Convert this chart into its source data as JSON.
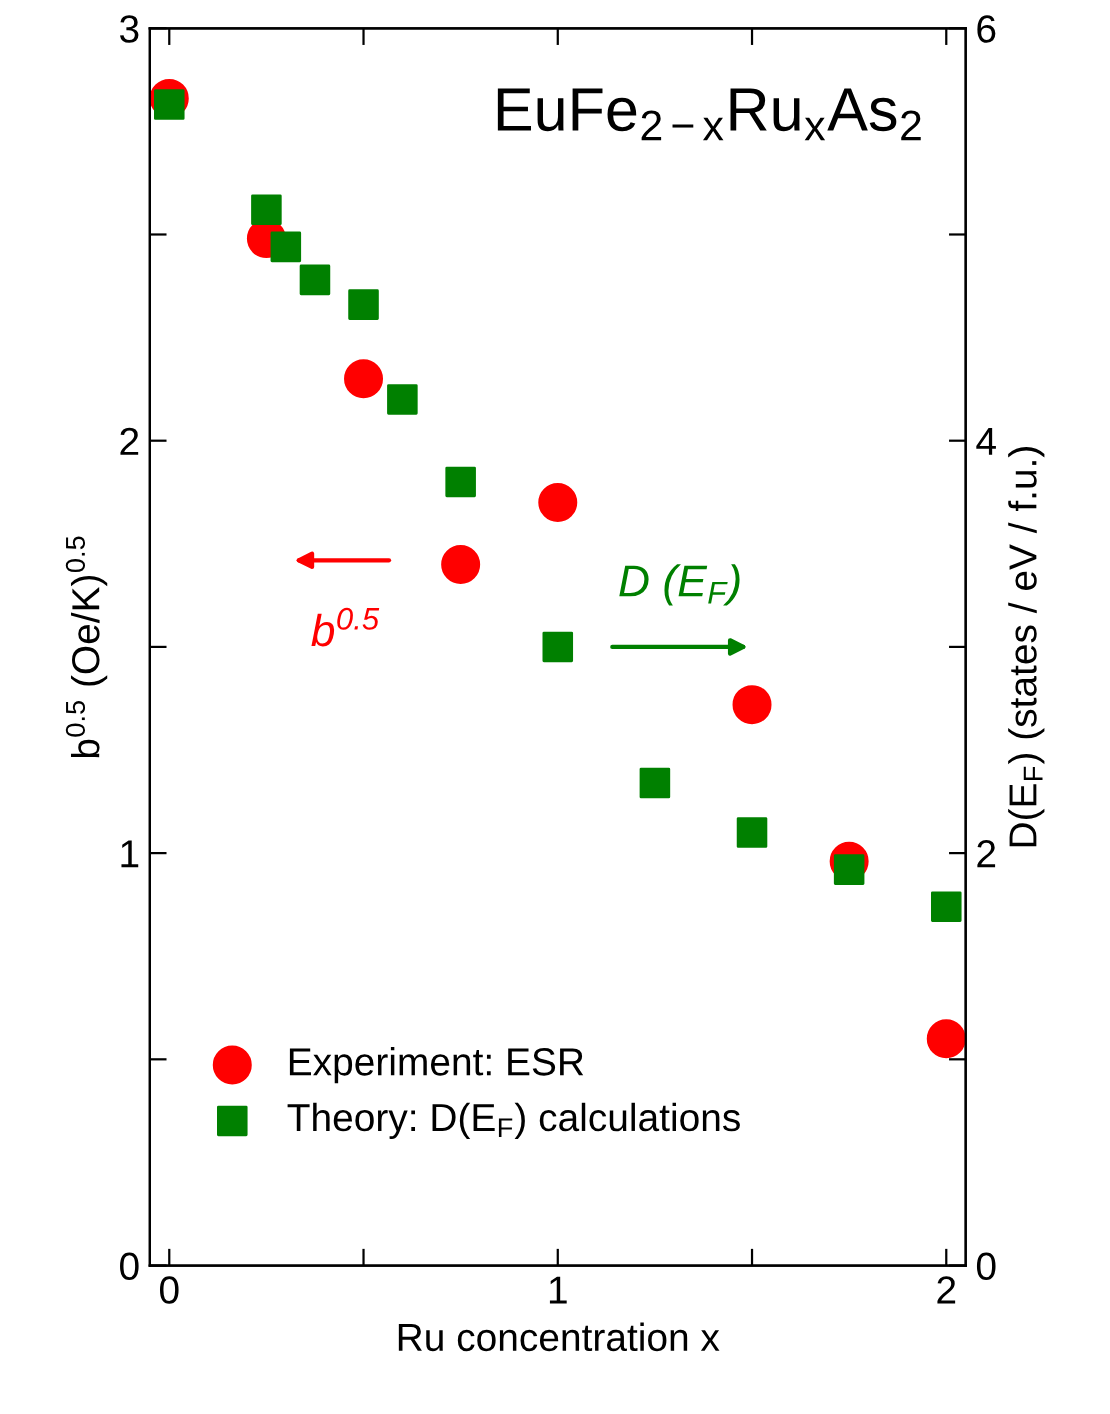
{
  "chart_data": {
    "type": "scatter",
    "title": "EuFe$_{2−x}$Ru$_{x}$As$_{2}$",
    "xlabel": "Ru concentration x",
    "ylabel": "b$^{0.5}$ (Oe/K)$^{0.5}$",
    "y2label": "D(E$_{F}$) (states / eV / f.u.)",
    "xlim": [
      -0.05,
      2.05
    ],
    "xticks": [
      0,
      {
        "value": 0.5,
        "label": null
      },
      1,
      {
        "value": 1.5,
        "label": null
      },
      2
    ],
    "ylim": [
      0,
      3
    ],
    "yticks": [
      0,
      {
        "value": 0.5,
        "label": null
      },
      1,
      {
        "value": 1.5,
        "label": null
      },
      2,
      {
        "value": 2.5,
        "label": null
      },
      3
    ],
    "y2lim": [
      0,
      6
    ],
    "y2ticks": [
      0,
      {
        "value": 1,
        "label": null
      },
      2,
      {
        "value": 3,
        "label": null
      },
      4,
      {
        "value": 5,
        "label": null
      },
      6
    ],
    "grid": false,
    "legend": "bottom left",
    "annotations": [
      "b$^{0.5}$",
      "D (E$_{F}$)"
    ],
    "series": [
      {
        "name": "Experiment: ESR",
        "color": "#ff0000",
        "marker": "circle",
        "x": [
          0,
          0.25,
          0.5,
          0.75,
          1,
          1.5,
          1.75,
          2
        ],
        "values": [
          2.83,
          2.49,
          2.15,
          1.7,
          1.85,
          1.36,
          0.98,
          0.55
        ]
      },
      {
        "name": "Theory: D(E$_{F}$) calculations",
        "color": "#008000",
        "marker": "square",
        "axis": "y2",
        "x": [
          0,
          0.25,
          0.3,
          0.375,
          0.5,
          0.6,
          0.75,
          1,
          1.25,
          1.5,
          1.75,
          2
        ],
        "values": [
          5.63,
          5.12,
          4.94,
          4.78,
          4.66,
          4.2,
          3.8,
          3.0,
          2.34,
          2.1,
          1.92,
          1.74
        ]
      }
    ]
  }
}
